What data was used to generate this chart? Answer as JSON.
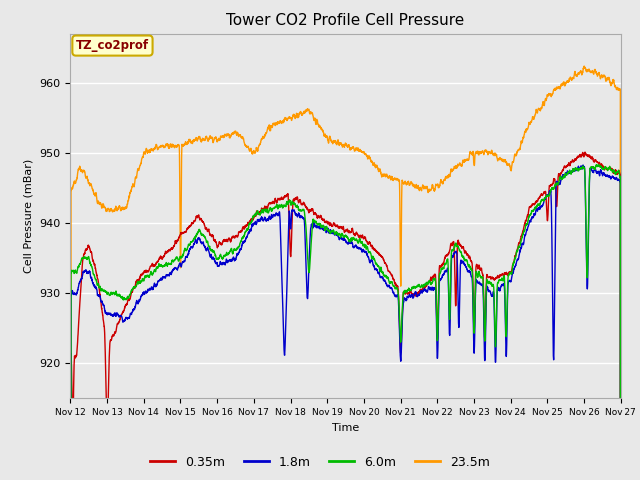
{
  "title": "Tower CO2 Profile Cell Pressure",
  "xlabel": "Time",
  "ylabel": "Cell Pressure (mBar)",
  "ylim": [
    915,
    967
  ],
  "xlim": [
    0,
    360
  ],
  "fig_bg_color": "#e8e8e8",
  "plot_bg_color": "#e8e8e8",
  "grid_color": "white",
  "series": {
    "0.35m": {
      "color": "#cc0000",
      "lw": 1.0
    },
    "1.8m": {
      "color": "#0000cc",
      "lw": 1.0
    },
    "6.0m": {
      "color": "#00bb00",
      "lw": 1.0
    },
    "23.5m": {
      "color": "#ff9900",
      "lw": 1.0
    }
  },
  "legend_label": "TZ_co2prof",
  "xtick_labels": [
    "Nov 12",
    "Nov 13",
    "Nov 14",
    "Nov 15",
    "Nov 16",
    "Nov 17",
    "Nov 18",
    "Nov 19",
    "Nov 20",
    "Nov 21",
    "Nov 22",
    "Nov 23",
    "Nov 24",
    "Nov 25",
    "Nov 26",
    "Nov 27"
  ],
  "xtick_positions": [
    0,
    24,
    48,
    72,
    96,
    120,
    144,
    168,
    192,
    216,
    240,
    264,
    288,
    312,
    336,
    360
  ]
}
